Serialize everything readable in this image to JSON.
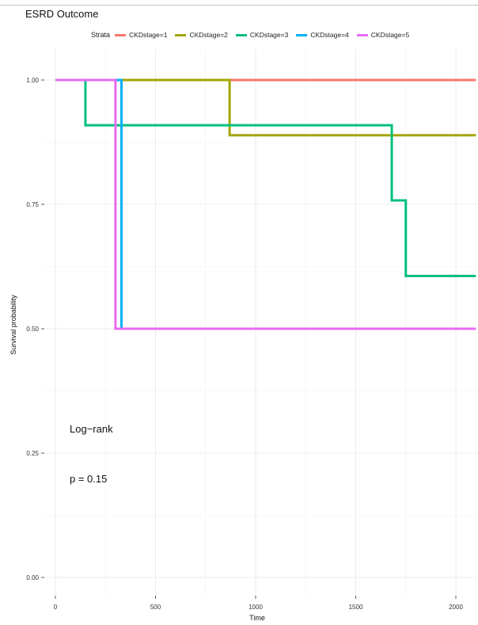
{
  "chart_data": {
    "type": "line",
    "step": true,
    "title": "ESRD Outcome",
    "xlabel": "Time",
    "ylabel": "Survival probability",
    "xlim": [
      0,
      2100
    ],
    "ylim": [
      0,
      1.0
    ],
    "x_ticks": [
      "0",
      "500",
      "1000",
      "1500",
      "2000"
    ],
    "x_tick_values": [
      0,
      500,
      1000,
      1500,
      2000
    ],
    "y_ticks": [
      "0.00",
      "0.25",
      "0.50",
      "0.75",
      "1.00"
    ],
    "y_tick_values": [
      0,
      0.25,
      0.5,
      0.75,
      1.0
    ],
    "grid": true,
    "legend": {
      "title": "Strata",
      "position": "top"
    },
    "series": [
      {
        "name": "CKDstage=1",
        "color": "#F8766D",
        "x": [
          0,
          2100
        ],
        "y": [
          1.0,
          1.0
        ]
      },
      {
        "name": "CKDstage=2",
        "color": "#A3A500",
        "x": [
          0,
          870,
          2100
        ],
        "y": [
          1.0,
          0.889,
          0.889
        ]
      },
      {
        "name": "CKDstage=3",
        "color": "#00BF7D",
        "x": [
          0,
          150,
          1680,
          1750,
          2100
        ],
        "y": [
          1.0,
          0.909,
          0.758,
          0.606,
          0.606
        ]
      },
      {
        "name": "CKDstage=4",
        "color": "#00B0F6",
        "x": [
          0,
          330,
          330
        ],
        "y": [
          1.0,
          0.5,
          0.5
        ]
      },
      {
        "name": "CKDstage=5",
        "color": "#E76BF3",
        "x": [
          0,
          300,
          2100
        ],
        "y": [
          1.0,
          0.5,
          0.5
        ]
      }
    ],
    "annotations": [
      {
        "text": "Log−rank"
      },
      {
        "text": "p = 0.15"
      }
    ]
  }
}
